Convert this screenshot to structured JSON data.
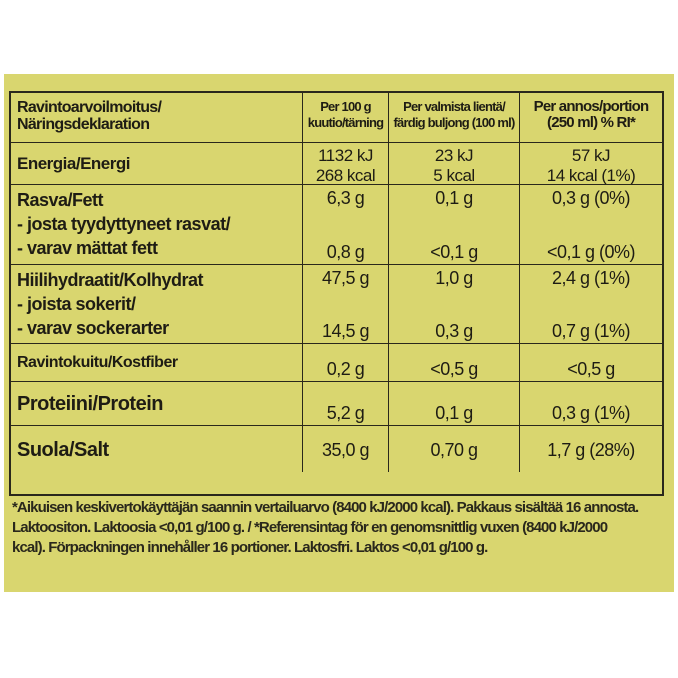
{
  "header": {
    "col1": "Ravintoarvoilmoitus/\nNäringsdeklaration",
    "col2": "Per 100 g\nkuutio/tärning",
    "col3": "Per valmista lientä/\nfärdig buljong (100 ml)",
    "col4": "Per annos/portion\n(250 ml) % RI*"
  },
  "rows": {
    "energy": {
      "label": "Energia/Energi",
      "v1a": "1132 kJ",
      "v1b": "268 kcal",
      "v2a": "23 kJ",
      "v2b": "5 kcal",
      "v3a": "57 kJ",
      "v3b": "14 kcal (1%)"
    },
    "fat": {
      "l1": "Rasva/Fett",
      "l2": "- josta tyydyttyneet rasvat/",
      "l3": "- varav mättat fett",
      "v1a": "6,3 g",
      "v1b": "0,8 g",
      "v2a": "0,1 g",
      "v2b": "<0,1 g",
      "v3a": "0,3 g (0%)",
      "v3b": "<0,1 g (0%)"
    },
    "carb": {
      "l1": "Hiilihydraatit/Kolhydrat",
      "l2": "- joista sokerit/",
      "l3": "- varav sockerarter",
      "v1a": "47,5 g",
      "v1b": "14,5 g",
      "v2a": "1,0 g",
      "v2b": "0,3 g",
      "v3a": "2,4 g (1%)",
      "v3b": "0,7 g (1%)"
    },
    "fiber": {
      "label": "Ravintokuitu/Kostfiber",
      "v1": "0,2 g",
      "v2": "<0,5 g",
      "v3": "<0,5 g"
    },
    "protein": {
      "label": "Proteiini/Protein",
      "v1": "5,2 g",
      "v2": "0,1 g",
      "v3": "0,3 g (1%)"
    },
    "salt": {
      "label": "Suola/Salt",
      "v1": "35,0 g",
      "v2": "0,70 g",
      "v3": "1,7 g (28%)"
    }
  },
  "footnote": {
    "line1": "*Aikuisen keskivertokäyttäjän saannin vertailuarvo (8400 kJ/2000 kcal). Pakkaus sisältää 16 annosta.",
    "line2": "Laktoositon. Laktoosia <0,01 g/100 g. / *Referensintag för en genomsnittlig vuxen (8400 kJ/2000",
    "line3": "kcal). Förpackningen innehåller 16 portioner. Laktosfri. Laktos <0,01 g/100 g."
  },
  "colors": {
    "background": "#d9d66f",
    "rule": "#2a281c",
    "text": "#1e1c14"
  }
}
